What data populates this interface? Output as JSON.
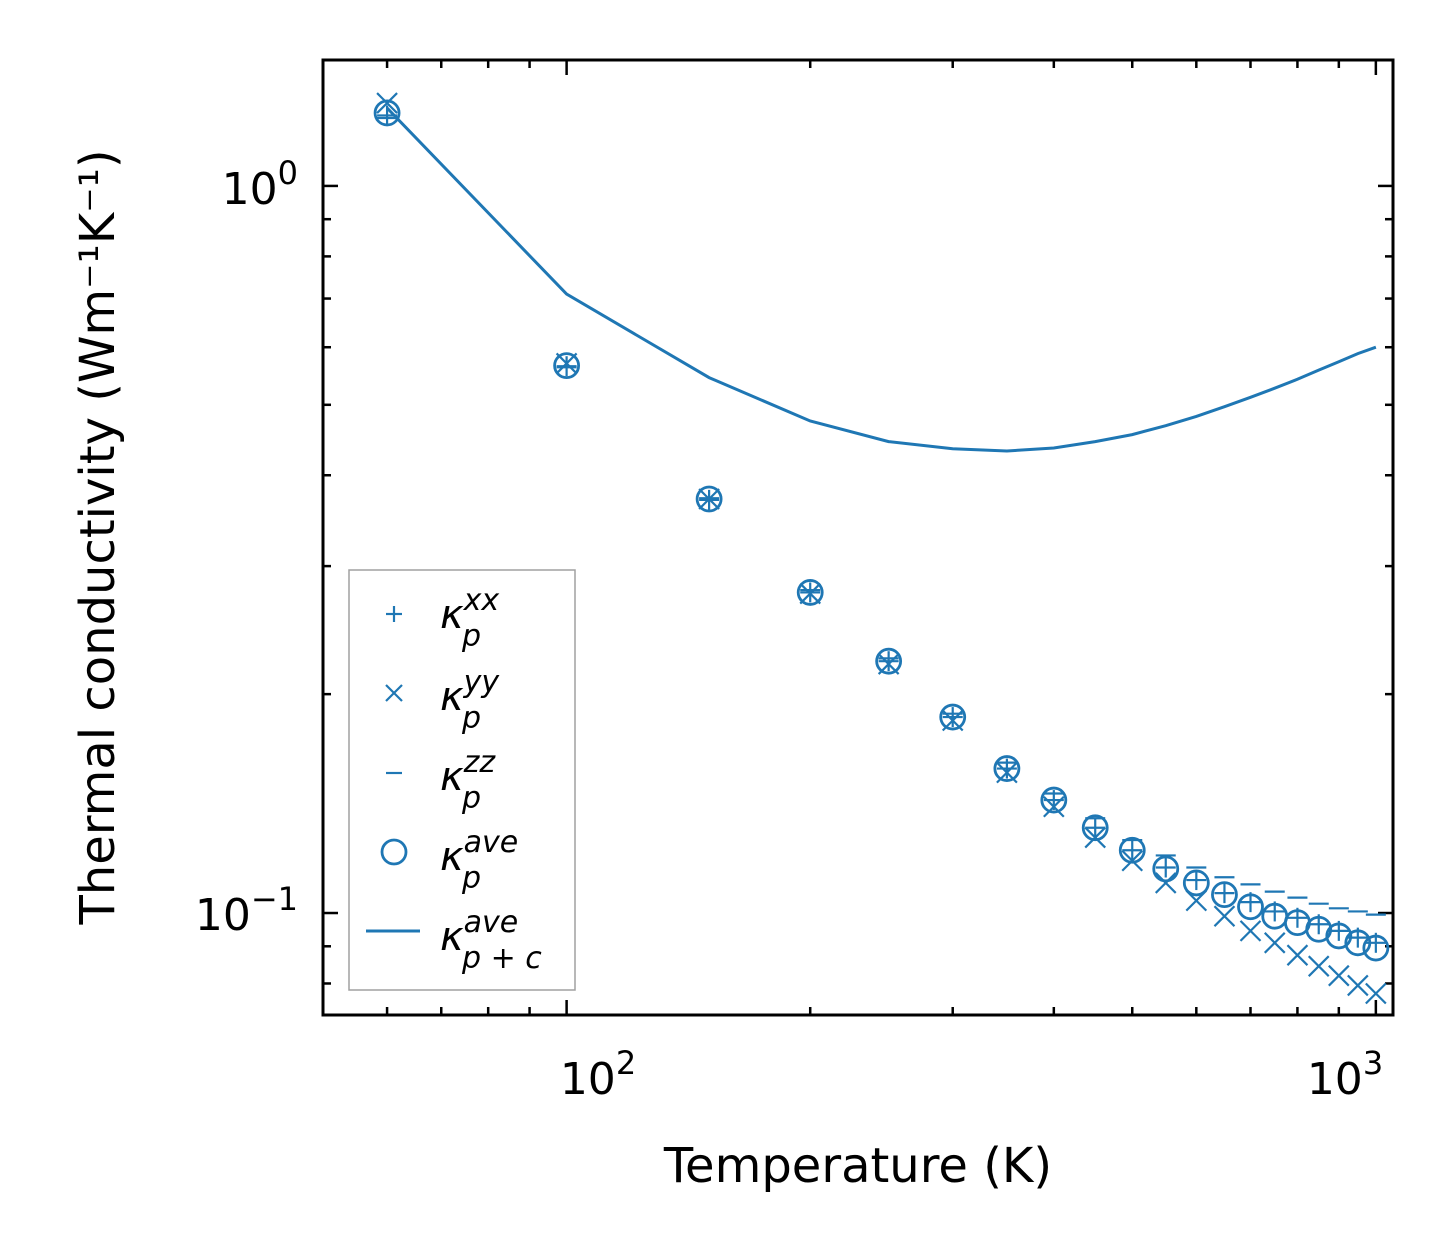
{
  "chart_data": {
    "type": "scatter",
    "title": "",
    "xlabel": "Temperature (K)",
    "ylabel": "Thermal conductivity (Wm⁻¹K⁻¹)",
    "xscale": "log",
    "yscale": "log",
    "xlim": [
      50,
      1050
    ],
    "ylim": [
      0.0724,
      1.49
    ],
    "x_ticks": [
      {
        "value": 100,
        "base": "10",
        "exp": "2"
      },
      {
        "value": 1000,
        "base": "10",
        "exp": "3"
      }
    ],
    "y_ticks": [
      {
        "value": 1.0,
        "base": "10",
        "exp": "0"
      },
      {
        "value": 0.1,
        "base": "10",
        "exp": "−1"
      }
    ],
    "grid": false,
    "legend_position": "lower-left",
    "color": "#1f77b4",
    "x": [
      60,
      100,
      150,
      200,
      250,
      300,
      350,
      400,
      450,
      500,
      550,
      600,
      650,
      700,
      750,
      800,
      850,
      900,
      950,
      1000
    ],
    "series": [
      {
        "name": "kappa_p^xx",
        "base": "κ",
        "sub": "p",
        "sup": "xx",
        "marker": "plus",
        "line": false,
        "values": [
          1.25,
          0.565,
          0.37,
          0.276,
          0.222,
          0.186,
          0.158,
          0.143,
          0.131,
          0.122,
          0.1155,
          0.111,
          0.1065,
          0.1035,
          0.1005,
          0.0985,
          0.0965,
          0.0945,
          0.0925,
          0.091
        ]
      },
      {
        "name": "kappa_p^yy",
        "base": "κ",
        "sub": "p",
        "sup": "yy",
        "marker": "x",
        "line": false,
        "values": [
          1.3,
          0.57,
          0.371,
          0.275,
          0.22,
          0.184,
          0.156,
          0.14,
          0.127,
          0.118,
          0.11,
          0.104,
          0.099,
          0.0945,
          0.091,
          0.0875,
          0.0845,
          0.082,
          0.0795,
          0.0775
        ]
      },
      {
        "name": "kappa_p^zz",
        "base": "κ",
        "sub": "p",
        "sup": "zz",
        "marker": "hline",
        "line": false,
        "values": [
          1.24,
          0.563,
          0.372,
          0.278,
          0.224,
          0.188,
          0.161,
          0.146,
          0.135,
          0.126,
          0.12,
          0.1155,
          0.112,
          0.1095,
          0.107,
          0.105,
          0.103,
          0.1015,
          0.1005,
          0.0995
        ]
      },
      {
        "name": "kappa_p^ave",
        "base": "κ",
        "sub": "p",
        "sup": "ave",
        "marker": "circle",
        "line": false,
        "values": [
          1.26,
          0.566,
          0.371,
          0.276,
          0.222,
          0.186,
          0.158,
          0.143,
          0.131,
          0.122,
          0.115,
          0.11,
          0.106,
          0.102,
          0.099,
          0.097,
          0.095,
          0.093,
          0.091,
          0.0895
        ]
      },
      {
        "name": "kappa_p+c^ave",
        "base": "κ",
        "sub": "p + c",
        "sup": "ave",
        "marker": "none",
        "line": true,
        "values": [
          1.28,
          0.71,
          0.545,
          0.475,
          0.445,
          0.435,
          0.432,
          0.436,
          0.445,
          0.455,
          0.468,
          0.482,
          0.497,
          0.512,
          0.527,
          0.542,
          0.558,
          0.573,
          0.588,
          0.6
        ]
      }
    ]
  }
}
